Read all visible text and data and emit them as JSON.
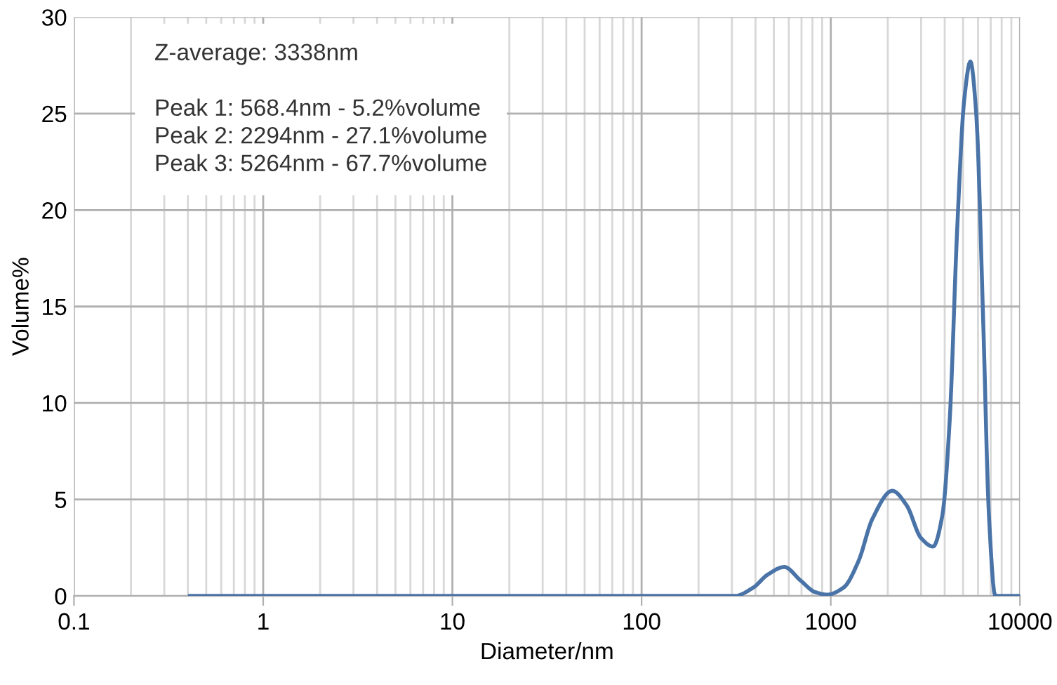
{
  "chart_data": {
    "type": "line",
    "xlabel": "Diameter/nm",
    "ylabel": "Volume%",
    "log": "x",
    "grid": true,
    "marker": "none",
    "line_style": "solid",
    "annotations": [
      "Z-average: 3338nm",
      "Peak 1: 568.4nm - 5.2%volume",
      "Peak 2: 2294nm - 27.1%volume",
      "Peak 3: 5264nm - 67.7%volume"
    ],
    "xlim": [
      0.1,
      10000
    ],
    "xticks": [
      0.1,
      1,
      10,
      100,
      1000,
      10000
    ],
    "ylim": [
      0,
      30
    ],
    "yticks": [
      0,
      5,
      10,
      15,
      20,
      25,
      30
    ],
    "series": [
      {
        "color": "#4a74a8",
        "x": [
          0.41,
          1,
          10,
          100,
          310,
          390,
          463,
          568,
          692,
          826,
          955,
          1170,
          1400,
          1660,
          2114,
          2515,
          3000,
          3470,
          3890,
          4250,
          4650,
          5070,
          5470,
          5870,
          6400,
          6850,
          7400,
          8500,
          10000
        ],
        "values": [
          0,
          0,
          0,
          0,
          0,
          0.44,
          1.1,
          1.5,
          0.8,
          0.2,
          0.07,
          0.44,
          1.8,
          4.0,
          5.45,
          4.7,
          3.0,
          2.56,
          4.2,
          9.1,
          18.9,
          25.7,
          27.7,
          25,
          14,
          4.2,
          0,
          0,
          0
        ]
      }
    ]
  }
}
